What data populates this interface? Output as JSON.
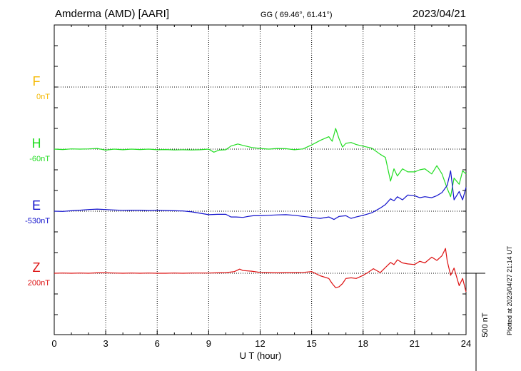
{
  "header": {
    "station": "Amderma (AMD)  [AARI]",
    "coords": "GG ( 69.46°,  61.41°)",
    "date": "2023/04/21"
  },
  "plotted_note": "Plotted at 2023/04/27 21:14 UT",
  "chart_data": {
    "type": "line",
    "xlabel": "U T (hour)",
    "xlim": [
      0,
      24
    ],
    "x_ticks": [
      "0",
      "3",
      "6",
      "9",
      "12",
      "15",
      "18",
      "21",
      "24"
    ],
    "y_unit": "nT",
    "scale_bar": {
      "label": "500 nT",
      "value": 500
    },
    "grid": true,
    "channel_spacing": 300,
    "series": [
      {
        "name": "F",
        "baseline_label": "0nT",
        "color": "#f5b800",
        "slot": 0,
        "points": []
      },
      {
        "name": "H",
        "baseline_label": "-60nT",
        "color": "#22dd22",
        "slot": 1,
        "points": [
          [
            0,
            0
          ],
          [
            0.5,
            -2
          ],
          [
            1,
            1
          ],
          [
            1.5,
            0
          ],
          [
            2,
            1
          ],
          [
            2.5,
            3
          ],
          [
            3,
            -5
          ],
          [
            3.5,
            0
          ],
          [
            4,
            -3
          ],
          [
            4.5,
            0
          ],
          [
            5,
            -2
          ],
          [
            5.5,
            0
          ],
          [
            6,
            -3
          ],
          [
            6.5,
            -2
          ],
          [
            7,
            -4
          ],
          [
            7.5,
            -3
          ],
          [
            8,
            -4
          ],
          [
            8.5,
            -3
          ],
          [
            9,
            0
          ],
          [
            9.3,
            -15
          ],
          [
            9.6,
            -5
          ],
          [
            10,
            -3
          ],
          [
            10.3,
            15
          ],
          [
            10.7,
            25
          ],
          [
            11,
            18
          ],
          [
            11.5,
            8
          ],
          [
            12,
            3
          ],
          [
            12.5,
            0
          ],
          [
            13,
            3
          ],
          [
            13.5,
            2
          ],
          [
            14,
            -3
          ],
          [
            14.5,
            1
          ],
          [
            15,
            20
          ],
          [
            15.5,
            42
          ],
          [
            16,
            60
          ],
          [
            16.2,
            38
          ],
          [
            16.4,
            100
          ],
          [
            16.6,
            50
          ],
          [
            16.8,
            10
          ],
          [
            17,
            28
          ],
          [
            17.3,
            32
          ],
          [
            17.6,
            22
          ],
          [
            18,
            14
          ],
          [
            18.5,
            5
          ],
          [
            19,
            -25
          ],
          [
            19.3,
            -40
          ],
          [
            19.6,
            -155
          ],
          [
            19.8,
            -95
          ],
          [
            20,
            -130
          ],
          [
            20.3,
            -95
          ],
          [
            20.6,
            -110
          ],
          [
            21,
            -110
          ],
          [
            21.3,
            -100
          ],
          [
            21.6,
            -95
          ],
          [
            22,
            -120
          ],
          [
            22.3,
            -80
          ],
          [
            22.6,
            -120
          ],
          [
            22.9,
            -190
          ],
          [
            23.1,
            -230
          ],
          [
            23.3,
            -140
          ],
          [
            23.6,
            -170
          ],
          [
            23.8,
            -105
          ],
          [
            24,
            -120
          ]
        ]
      },
      {
        "name": "E",
        "baseline_label": "-530nT",
        "color": "#1111cc",
        "slot": 2,
        "points": [
          [
            0,
            0
          ],
          [
            0.5,
            -1
          ],
          [
            1,
            2
          ],
          [
            1.5,
            5
          ],
          [
            2,
            8
          ],
          [
            2.5,
            10
          ],
          [
            3,
            8
          ],
          [
            3.5,
            6
          ],
          [
            4,
            4
          ],
          [
            4.5,
            5
          ],
          [
            5,
            5
          ],
          [
            5.5,
            3
          ],
          [
            6,
            4
          ],
          [
            6.5,
            3
          ],
          [
            7,
            2
          ],
          [
            7.5,
            1
          ],
          [
            8,
            -3
          ],
          [
            8.5,
            -10
          ],
          [
            9,
            -17
          ],
          [
            9.5,
            -15
          ],
          [
            10,
            -15
          ],
          [
            10.3,
            -28
          ],
          [
            10.6,
            -28
          ],
          [
            11,
            -30
          ],
          [
            11.3,
            -25
          ],
          [
            11.6,
            -22
          ],
          [
            12,
            -22
          ],
          [
            12.5,
            -20
          ],
          [
            13,
            -18
          ],
          [
            13.5,
            -17
          ],
          [
            14,
            -20
          ],
          [
            14.5,
            -25
          ],
          [
            15,
            -30
          ],
          [
            15.5,
            -35
          ],
          [
            16,
            -28
          ],
          [
            16.3,
            -40
          ],
          [
            16.6,
            -25
          ],
          [
            17,
            -22
          ],
          [
            17.3,
            -35
          ],
          [
            17.6,
            -28
          ],
          [
            18,
            -20
          ],
          [
            18.5,
            -8
          ],
          [
            19,
            15
          ],
          [
            19.3,
            32
          ],
          [
            19.6,
            60
          ],
          [
            19.8,
            50
          ],
          [
            20,
            70
          ],
          [
            20.3,
            55
          ],
          [
            20.6,
            78
          ],
          [
            21,
            75
          ],
          [
            21.3,
            65
          ],
          [
            21.6,
            70
          ],
          [
            22,
            65
          ],
          [
            22.3,
            75
          ],
          [
            22.6,
            90
          ],
          [
            22.9,
            125
          ],
          [
            23.1,
            195
          ],
          [
            23.3,
            55
          ],
          [
            23.6,
            95
          ],
          [
            23.8,
            55
          ],
          [
            24,
            115
          ]
        ]
      },
      {
        "name": "Z",
        "baseline_label": "200nT",
        "color": "#dd1111",
        "slot": 3,
        "points": [
          [
            0,
            0
          ],
          [
            0.5,
            1
          ],
          [
            1,
            0
          ],
          [
            1.5,
            1
          ],
          [
            2,
            0
          ],
          [
            2.5,
            2
          ],
          [
            3,
            2
          ],
          [
            3.5,
            1
          ],
          [
            4,
            0
          ],
          [
            4.5,
            1
          ],
          [
            5,
            0
          ],
          [
            5.5,
            1
          ],
          [
            6,
            0
          ],
          [
            6.5,
            0
          ],
          [
            7,
            1
          ],
          [
            7.5,
            0
          ],
          [
            8,
            1
          ],
          [
            8.5,
            1
          ],
          [
            9,
            1
          ],
          [
            9.5,
            2
          ],
          [
            10,
            3
          ],
          [
            10.5,
            8
          ],
          [
            10.8,
            20
          ],
          [
            11,
            13
          ],
          [
            11.5,
            10
          ],
          [
            12,
            4
          ],
          [
            12.5,
            3
          ],
          [
            13,
            2
          ],
          [
            13.5,
            3
          ],
          [
            14,
            3
          ],
          [
            14.5,
            4
          ],
          [
            15,
            8
          ],
          [
            15.5,
            -12
          ],
          [
            16,
            -25
          ],
          [
            16.2,
            -50
          ],
          [
            16.4,
            -70
          ],
          [
            16.6,
            -65
          ],
          [
            16.8,
            -50
          ],
          [
            17,
            -25
          ],
          [
            17.3,
            -22
          ],
          [
            17.6,
            -25
          ],
          [
            18,
            -10
          ],
          [
            18.3,
            5
          ],
          [
            18.6,
            22
          ],
          [
            19,
            3
          ],
          [
            19.3,
            28
          ],
          [
            19.6,
            52
          ],
          [
            19.8,
            42
          ],
          [
            20,
            65
          ],
          [
            20.3,
            50
          ],
          [
            20.6,
            45
          ],
          [
            21,
            42
          ],
          [
            21.3,
            58
          ],
          [
            21.6,
            50
          ],
          [
            22,
            78
          ],
          [
            22.3,
            62
          ],
          [
            22.6,
            85
          ],
          [
            22.8,
            120
          ],
          [
            22.9,
            60
          ],
          [
            23.1,
            -10
          ],
          [
            23.3,
            25
          ],
          [
            23.6,
            -60
          ],
          [
            23.8,
            -25
          ],
          [
            24,
            -90
          ]
        ]
      }
    ]
  }
}
